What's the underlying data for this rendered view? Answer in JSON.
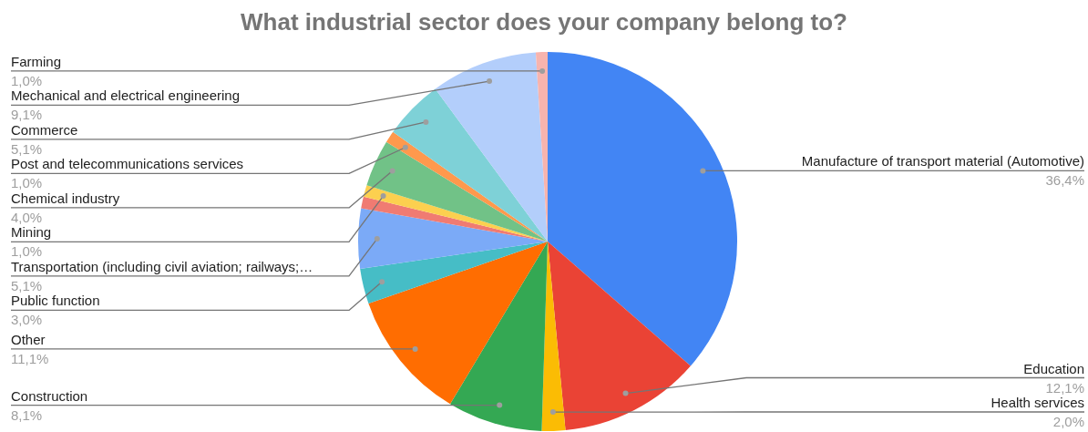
{
  "chart_data": {
    "type": "pie",
    "title": "What industrial sector does your company belong to?",
    "categories": [
      "Manufacture of transport material (Automotive)",
      "Education",
      "Health services",
      "Construction",
      "Other",
      "Public function",
      "Transportation (including civil aviation; railways;…",
      null,
      "Mining",
      "Chemical industry",
      "Post and telecommunications services",
      "Commerce",
      "Mechanical and electrical engineering",
      "Farming"
    ],
    "values": [
      36.4,
      12.1,
      2.0,
      8.1,
      11.1,
      3.0,
      5.1,
      1.0,
      1.0,
      4.0,
      1.0,
      5.1,
      9.1,
      1.0
    ],
    "value_labels": [
      "36,4%",
      "12,1%",
      "2,0%",
      "8,1%",
      "11,1%",
      "3,0%",
      "5,1%",
      null,
      "1,0%",
      "4,0%",
      "1,0%",
      "5,1%",
      "9,1%",
      "1,0%"
    ],
    "colors": [
      "#4285f4",
      "#ea4335",
      "#fbbc04",
      "#34a853",
      "#ff6d01",
      "#46bdc6",
      "#7baaf7",
      "#f07b72",
      "#fcd04f",
      "#71c287",
      "#ff994d",
      "#7ed1d7",
      "#b3cefb",
      "#f7b4ae"
    ],
    "legend": false
  }
}
